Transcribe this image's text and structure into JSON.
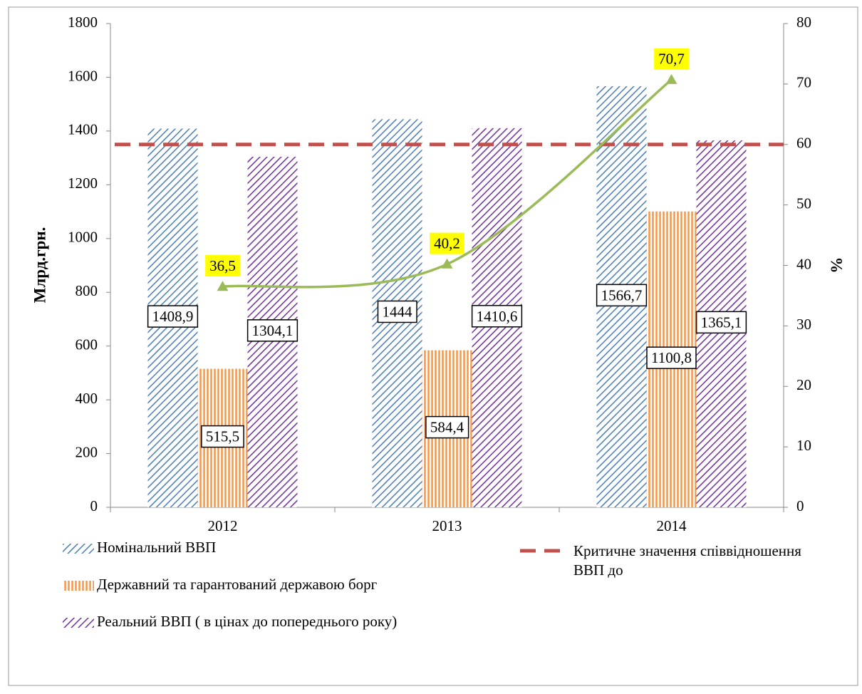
{
  "chart_data": {
    "type": "bar",
    "categories": [
      "2012",
      "2013",
      "2014"
    ],
    "y_label": "Млрд.грн.",
    "y2_label": "%",
    "ylim": [
      0,
      1800
    ],
    "yticks": [
      0,
      200,
      400,
      600,
      800,
      1000,
      1200,
      1400,
      1600,
      1800
    ],
    "y2lim": [
      0,
      80
    ],
    "y2ticks": [
      0,
      10,
      20,
      30,
      40,
      50,
      60,
      70,
      80
    ],
    "series": [
      {
        "name": "Номінальний ВВП",
        "color": "#4a7ebb",
        "pattern": "diagonal",
        "values": [
          1408.9,
          1444,
          1566.7
        ],
        "value_labels": [
          "1408,9",
          "1444",
          "1566,7"
        ]
      },
      {
        "name": "Державний та гарантований державою борг",
        "color": "#f79646",
        "pattern": "vertical",
        "values": [
          515.5,
          584.4,
          1100.8
        ],
        "value_labels": [
          "515,5",
          "584,4",
          "1100,8"
        ]
      },
      {
        "name": "Реальний ВВП ( в цінах до попереднього року)",
        "color": "#7030a0",
        "pattern": "diagonal",
        "values": [
          1304.1,
          1410.6,
          1365.1
        ],
        "value_labels": [
          "1304,1",
          "1410,6",
          "1365,1"
        ]
      },
      {
        "type": "line",
        "axis": "y2",
        "color": "#9bbb59",
        "values": [
          36.5,
          40.2,
          70.7
        ],
        "value_labels": [
          "36,5",
          "40,2",
          "70,7"
        ]
      }
    ],
    "reference_line": {
      "name": "Критичне значення співвідношення  ВВП до",
      "value": 60,
      "axis": "y2",
      "color": "#c0504d",
      "dashed": true
    }
  }
}
